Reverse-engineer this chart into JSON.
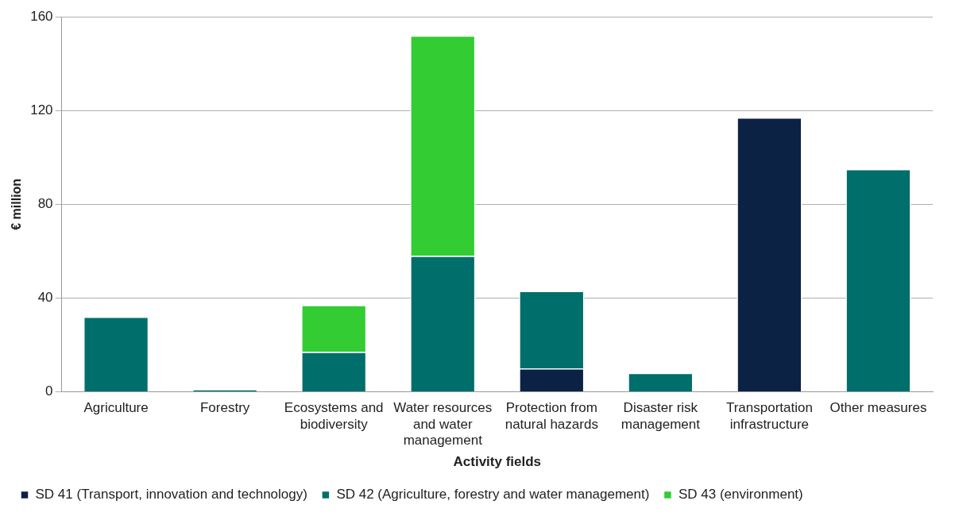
{
  "chart_data": {
    "type": "bar",
    "stacked": true,
    "xlabel": "Activity fields",
    "ylabel": "€ million",
    "categories": [
      "Agriculture",
      "Forestry",
      "Ecosystems and biodiversity",
      "Water resources and water management",
      "Protection from natural hazards",
      "Disaster risk management",
      "Transportation infrastructure",
      "Other measures"
    ],
    "series": [
      {
        "name": "SD 41 (Transport, innovation and technology)",
        "color": "#0b2244",
        "values": [
          null,
          null,
          null,
          null,
          10,
          null,
          117,
          null
        ]
      },
      {
        "name": "SD 42 (Agriculture, forestry and water management)",
        "color": "#006e6a",
        "values": [
          32,
          1,
          17,
          58,
          33,
          8,
          null,
          95
        ]
      },
      {
        "name": "SD 43 (environment)",
        "color": "#33cc33",
        "values": [
          null,
          null,
          20,
          94,
          null,
          null,
          null,
          null
        ]
      }
    ],
    "ylim": [
      0,
      160
    ],
    "yticks": [
      0,
      40,
      80,
      120,
      160
    ],
    "grid": "y",
    "legend": "bottom"
  }
}
